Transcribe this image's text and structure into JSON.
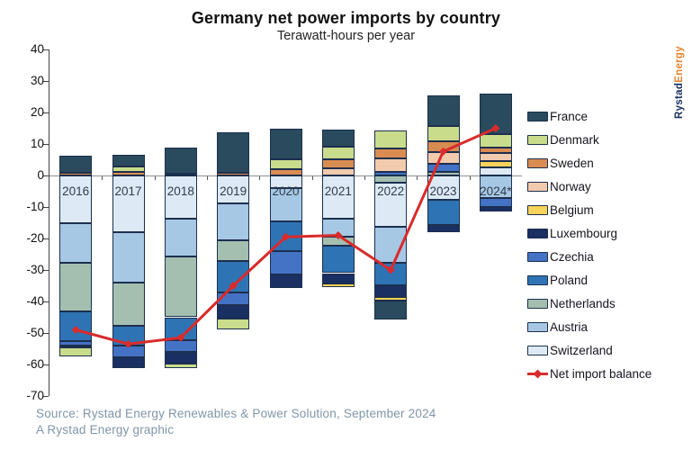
{
  "title": "Germany net power imports by country",
  "subtitle": "Terawatt-hours per year",
  "source_line1": "Source: Rystad Energy Renewables & Power Solution, September 2024",
  "source_line2": "A Rystad Energy graphic",
  "logo": {
    "part1": "Rystad",
    "part2": "Energy"
  },
  "colors": {
    "France": "#2a4a5e",
    "Denmark": "#c9dc8c",
    "Sweden": "#d98c52",
    "Norway": "#f2cbae",
    "Belgium": "#f6d359",
    "Luxembourg": "#1a2f62",
    "Czechia": "#4472c4",
    "Poland": "#2e74b5",
    "Netherlands": "#a4bfb0",
    "Austria": "#a6c8e4",
    "Switzerland": "#ddeaf6",
    "net_line": "#d92b2b"
  },
  "legend_items": [
    "France",
    "Denmark",
    "Sweden",
    "Norway",
    "Belgium",
    "Luxembourg",
    "Czechia",
    "Poland",
    "Netherlands",
    "Austria",
    "Switzerland"
  ],
  "net_legend_label": "Net import balance",
  "chart_data": {
    "type": "bar",
    "stacked": true,
    "title": "Germany net power imports by country",
    "subtitle": "Terawatt-hours per year",
    "unit": "Terawatt-hours",
    "categories": [
      "2016",
      "2017",
      "2018",
      "2019",
      "2020",
      "2021",
      "2022",
      "2023",
      "2024*"
    ],
    "ylim": [
      -70,
      40
    ],
    "yticks": [
      40,
      30,
      20,
      10,
      0,
      -10,
      -20,
      -30,
      -40,
      -50,
      -60,
      -70
    ],
    "grid": false,
    "legend_position": "right",
    "bars": [
      {
        "year": "2016",
        "segments": [
          {
            "country": "France",
            "value": 5.5
          },
          {
            "country": "Sweden",
            "value": 0.8
          },
          {
            "country": "Switzerland",
            "value": -15.2
          },
          {
            "country": "Austria",
            "value": -12.6
          },
          {
            "country": "Netherlands",
            "value": -15.4
          },
          {
            "country": "Poland",
            "value": -9.4
          },
          {
            "country": "Czechia",
            "value": -1.4
          },
          {
            "country": "Luxembourg",
            "value": -0.6
          },
          {
            "country": "Denmark",
            "value": -2.8
          }
        ]
      },
      {
        "year": "2017",
        "segments": [
          {
            "country": "France",
            "value": 3.8
          },
          {
            "country": "Denmark",
            "value": 1.7
          },
          {
            "country": "Sweden",
            "value": 1.2
          },
          {
            "country": "Switzerland",
            "value": -18.0
          },
          {
            "country": "Austria",
            "value": -16.0
          },
          {
            "country": "Netherlands",
            "value": -13.7
          },
          {
            "country": "Poland",
            "value": -6.3
          },
          {
            "country": "Czechia",
            "value": -3.6
          },
          {
            "country": "Luxembourg",
            "value": -3.6
          }
        ]
      },
      {
        "year": "2018",
        "segments": [
          {
            "country": "France",
            "value": 8.5
          },
          {
            "country": "Sweden",
            "value": 0.5
          },
          {
            "country": "Switzerland",
            "value": -13.6
          },
          {
            "country": "Austria",
            "value": -12.1
          },
          {
            "country": "Netherlands",
            "value": -19.3
          },
          {
            "country": "Poland",
            "value": -7.4
          },
          {
            "country": "Czechia",
            "value": -3.5
          },
          {
            "country": "Luxembourg",
            "value": -3.8
          },
          {
            "country": "Denmark",
            "value": -1.5
          }
        ]
      },
      {
        "year": "2019",
        "segments": [
          {
            "country": "France",
            "value": 13.0
          },
          {
            "country": "Sweden",
            "value": 0.8
          },
          {
            "country": "Switzerland",
            "value": -8.9
          },
          {
            "country": "Austria",
            "value": -11.6
          },
          {
            "country": "Netherlands",
            "value": -6.6
          },
          {
            "country": "Poland",
            "value": -10.0
          },
          {
            "country": "Czechia",
            "value": -4.1
          },
          {
            "country": "Luxembourg",
            "value": -4.2
          },
          {
            "country": "Denmark",
            "value": -3.6
          }
        ]
      },
      {
        "year": "2020",
        "segments": [
          {
            "country": "France",
            "value": 9.8
          },
          {
            "country": "Denmark",
            "value": 3.0
          },
          {
            "country": "Sweden",
            "value": 2.1
          },
          {
            "country": "Switzerland",
            "value": -4.0
          },
          {
            "country": "Austria",
            "value": -10.5
          },
          {
            "country": "Poland",
            "value": -9.5
          },
          {
            "country": "Czechia",
            "value": -7.4
          },
          {
            "country": "Luxembourg",
            "value": -4.3
          }
        ]
      },
      {
        "year": "2021",
        "segments": [
          {
            "country": "France",
            "value": 5.5
          },
          {
            "country": "Denmark",
            "value": 4.0
          },
          {
            "country": "Sweden",
            "value": 2.7
          },
          {
            "country": "Norway",
            "value": 2.4
          },
          {
            "country": "Switzerland",
            "value": -13.8
          },
          {
            "country": "Austria",
            "value": -5.7
          },
          {
            "country": "Netherlands",
            "value": -2.9
          },
          {
            "country": "Poland",
            "value": -8.6
          },
          {
            "country": "Luxembourg",
            "value": -3.3
          },
          {
            "country": "Belgium",
            "value": -1.2
          }
        ]
      },
      {
        "year": "2022",
        "segments": [
          {
            "country": "Denmark",
            "value": 5.7
          },
          {
            "country": "Sweden",
            "value": 3.3
          },
          {
            "country": "Norway",
            "value": 4.1
          },
          {
            "country": "Czechia",
            "value": 1.2
          },
          {
            "country": "Netherlands",
            "value": -2.3
          },
          {
            "country": "Switzerland",
            "value": -14.0
          },
          {
            "country": "Austria",
            "value": -11.4
          },
          {
            "country": "Poland",
            "value": -7.2
          },
          {
            "country": "Luxembourg",
            "value": -3.6
          },
          {
            "country": "Belgium",
            "value": -1.1
          },
          {
            "country": "France",
            "value": -6.2
          }
        ]
      },
      {
        "year": "2023",
        "segments": [
          {
            "country": "France",
            "value": 9.5
          },
          {
            "country": "Denmark",
            "value": 4.9
          },
          {
            "country": "Sweden",
            "value": 3.5
          },
          {
            "country": "Norway",
            "value": 3.8
          },
          {
            "country": "Czechia",
            "value": 2.5
          },
          {
            "country": "Netherlands",
            "value": 1.1
          },
          {
            "country": "Switzerland",
            "value": -7.6
          },
          {
            "country": "Poland",
            "value": -8.1
          },
          {
            "country": "Luxembourg",
            "value": -2.4
          }
        ]
      },
      {
        "year": "2024*",
        "segments": [
          {
            "country": "France",
            "value": 13.0
          },
          {
            "country": "Denmark",
            "value": 4.2
          },
          {
            "country": "Sweden",
            "value": 1.7
          },
          {
            "country": "Norway",
            "value": 2.5
          },
          {
            "country": "Belgium",
            "value": 2.2
          },
          {
            "country": "Switzerland",
            "value": 2.5
          },
          {
            "country": "Austria",
            "value": -7.1
          },
          {
            "country": "Czechia",
            "value": -2.9
          },
          {
            "country": "Luxembourg",
            "value": -1.4
          }
        ]
      }
    ],
    "net_import_balance": {
      "name": "Net import balance",
      "values": [
        -49,
        -53.5,
        -51.5,
        -35,
        -19.5,
        -19,
        -30,
        7.6,
        15
      ]
    }
  }
}
